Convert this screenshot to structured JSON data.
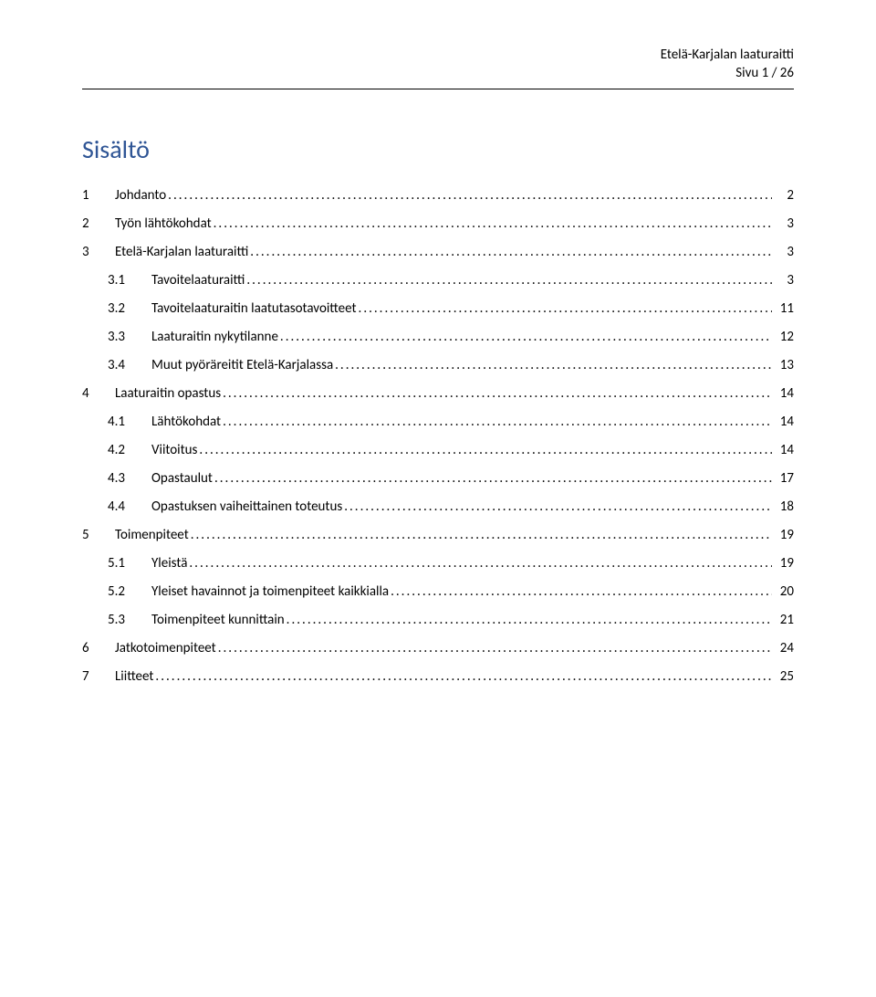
{
  "header": {
    "doc_name": "Etelä-Karjalan laaturaitti",
    "page_indicator": "Sivu 1 / 26"
  },
  "title": "Sisältö",
  "toc": [
    {
      "level": 1,
      "num": "1",
      "label": "Johdanto",
      "page": "2"
    },
    {
      "level": 1,
      "num": "2",
      "label": "Työn lähtökohdat",
      "page": "3"
    },
    {
      "level": 1,
      "num": "3",
      "label": "Etelä-Karjalan laaturaitti",
      "page": "3"
    },
    {
      "level": 2,
      "num": "3.1",
      "label": "Tavoitelaaturaitti",
      "page": "3"
    },
    {
      "level": 2,
      "num": "3.2",
      "label": "Tavoitelaaturaitin laatutasotavoitteet",
      "page": "11"
    },
    {
      "level": 2,
      "num": "3.3",
      "label": "Laaturaitin nykytilanne",
      "page": "12"
    },
    {
      "level": 2,
      "num": "3.4",
      "label": "Muut pyöräreitit Etelä-Karjalassa",
      "page": "13"
    },
    {
      "level": 1,
      "num": "4",
      "label": "Laaturaitin opastus",
      "page": "14"
    },
    {
      "level": 2,
      "num": "4.1",
      "label": "Lähtökohdat",
      "page": "14"
    },
    {
      "level": 2,
      "num": "4.2",
      "label": "Viitoitus",
      "page": "14"
    },
    {
      "level": 2,
      "num": "4.3",
      "label": "Opastaulut",
      "page": "17"
    },
    {
      "level": 2,
      "num": "4.4",
      "label": "Opastuksen vaiheittainen toteutus",
      "page": "18"
    },
    {
      "level": 1,
      "num": "5",
      "label": "Toimenpiteet",
      "page": "19"
    },
    {
      "level": 2,
      "num": "5.1",
      "label": "Yleistä",
      "page": "19"
    },
    {
      "level": 2,
      "num": "5.2",
      "label": "Yleiset havainnot ja toimenpiteet kaikkialla",
      "page": "20"
    },
    {
      "level": 2,
      "num": "5.3",
      "label": "Toimenpiteet kunnittain",
      "page": "21"
    },
    {
      "level": 1,
      "num": "6",
      "label": "Jatkotoimenpiteet",
      "page": "24"
    },
    {
      "level": 1,
      "num": "7",
      "label": "Liitteet",
      "page": "25"
    }
  ]
}
